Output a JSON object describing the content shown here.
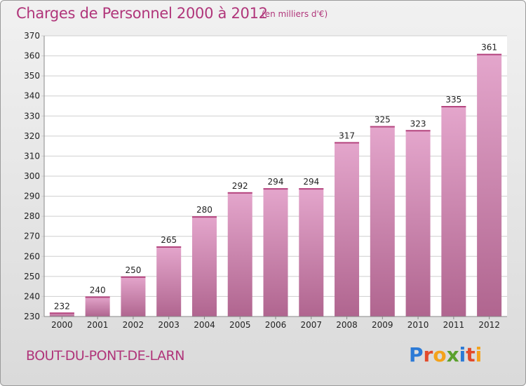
{
  "header": {
    "title": "Charges de Personnel 2000 à 2012",
    "subtitle": "(en milliers d'€)"
  },
  "footer": {
    "place": "BOUT-DU-PONT-DE-LARN",
    "logo": "Proxiti"
  },
  "colors": {
    "accent": "#b0357a",
    "bar_light": "#e4a6cc",
    "bar_dark": "#b0658f"
  },
  "chart_data": {
    "type": "bar",
    "categories": [
      "2000",
      "2001",
      "2002",
      "2003",
      "2004",
      "2005",
      "2006",
      "2007",
      "2008",
      "2009",
      "2010",
      "2011",
      "2012"
    ],
    "values": [
      232,
      240,
      250,
      265,
      280,
      292,
      294,
      294,
      317,
      325,
      323,
      335,
      361
    ],
    "ylim": [
      230,
      370
    ],
    "yticks": [
      230,
      240,
      250,
      260,
      270,
      280,
      290,
      300,
      310,
      320,
      330,
      340,
      350,
      360,
      370
    ],
    "grid": true
  }
}
